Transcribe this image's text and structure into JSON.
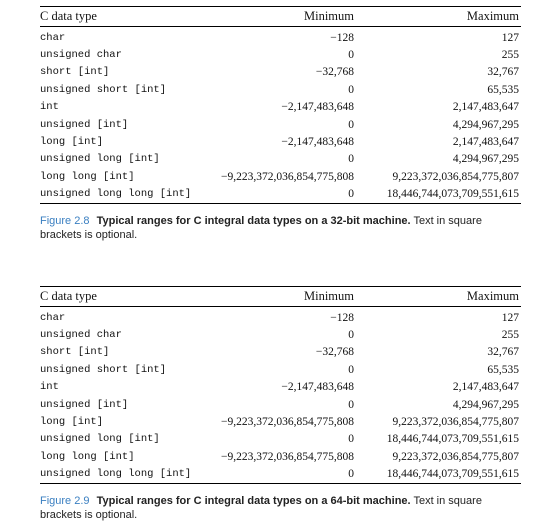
{
  "headers": {
    "type": "C data type",
    "min": "Minimum",
    "max": "Maximum"
  },
  "figures": [
    {
      "label": "Figure 2.8",
      "title": "Typical ranges for C integral data types on a 32-bit machine.",
      "note": "Text in square brackets is optional.",
      "rows": [
        {
          "type": "char",
          "min": "−128",
          "max": "127"
        },
        {
          "type": "unsigned char",
          "min": "0",
          "max": "255"
        },
        {
          "type": "short [int]",
          "min": "−32,768",
          "max": "32,767"
        },
        {
          "type": "unsigned short [int]",
          "min": "0",
          "max": "65,535"
        },
        {
          "type": "int",
          "min": "−2,147,483,648",
          "max": "2,147,483,647"
        },
        {
          "type": "unsigned [int]",
          "min": "0",
          "max": "4,294,967,295"
        },
        {
          "type": "long [int]",
          "min": "−2,147,483,648",
          "max": "2,147,483,647"
        },
        {
          "type": "unsigned long [int]",
          "min": "0",
          "max": "4,294,967,295"
        },
        {
          "type": "long long [int]",
          "min": "−9,223,372,036,854,775,808",
          "max": "9,223,372,036,854,775,807"
        },
        {
          "type": "unsigned long long [int]",
          "min": "0",
          "max": "18,446,744,073,709,551,615"
        }
      ]
    },
    {
      "label": "Figure 2.9",
      "title": "Typical ranges for C integral data types on a 64-bit machine.",
      "note": "Text in square brackets is optional.",
      "rows": [
        {
          "type": "char",
          "min": "−128",
          "max": "127"
        },
        {
          "type": "unsigned char",
          "min": "0",
          "max": "255"
        },
        {
          "type": "short [int]",
          "min": "−32,768",
          "max": "32,767"
        },
        {
          "type": "unsigned short [int]",
          "min": "0",
          "max": "65,535"
        },
        {
          "type": "int",
          "min": "−2,147,483,648",
          "max": "2,147,483,647"
        },
        {
          "type": "unsigned [int]",
          "min": "0",
          "max": "4,294,967,295"
        },
        {
          "type": "long [int]",
          "min": "−9,223,372,036,854,775,808",
          "max": "9,223,372,036,854,775,807"
        },
        {
          "type": "unsigned long [int]",
          "min": "0",
          "max": "18,446,744,073,709,551,615"
        },
        {
          "type": "long long [int]",
          "min": "−9,223,372,036,854,775,808",
          "max": "9,223,372,036,854,775,807"
        },
        {
          "type": "unsigned long long [int]",
          "min": "0",
          "max": "18,446,744,073,709,551,615"
        }
      ]
    }
  ]
}
